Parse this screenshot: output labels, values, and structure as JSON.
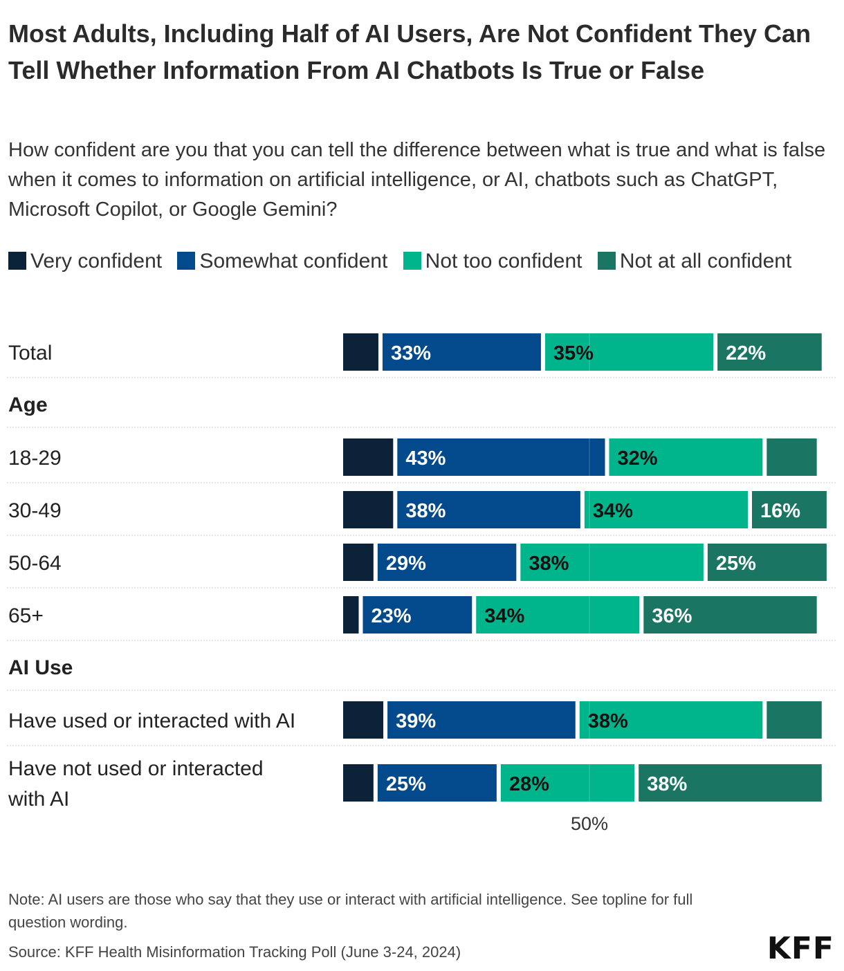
{
  "title": "Most Adults, Including Half of AI Users, Are Not Confident They Can Tell Whether Information From AI Chatbots Is True or False",
  "subtitle": "How confident are you that you can tell the difference between what is true and what is false when it comes to information on artificial intelligence, or AI, chatbots such as ChatGPT, Microsoft Copilot, or Google Gemini?",
  "note": "Note: AI users are those who say that they use or interact with artificial intelligence. See topline for full question wording.",
  "source": "Source: KFF Health Misinformation Tracking Poll (June 3-24, 2024)",
  "brand": "KFF",
  "colors": {
    "very_confident": "#0b2239",
    "somewhat_confident": "#034a8c",
    "not_too_confident": "#00b48c",
    "not_at_all_confident": "#1a7562"
  },
  "chart_data": {
    "type": "bar",
    "orientation": "horizontal",
    "stacked": true,
    "xlim": [
      0,
      100
    ],
    "x_tick_labels": [
      "50%"
    ],
    "x_ticks": [
      50
    ],
    "legend_position": "top-left",
    "series": [
      {
        "name": "Very confident",
        "key": "very_confident",
        "values": [
          8,
          11,
          11,
          7,
          4,
          9,
          7
        ]
      },
      {
        "name": "Somewhat confident",
        "key": "somewhat_confident",
        "values": [
          33,
          43,
          38,
          29,
          23,
          39,
          25
        ]
      },
      {
        "name": "Not too confident",
        "key": "not_too_confident",
        "values": [
          35,
          32,
          34,
          38,
          34,
          38,
          28
        ]
      },
      {
        "name": "Not at all confident",
        "key": "not_at_all_confident",
        "values": [
          22,
          11,
          16,
          25,
          36,
          12,
          38
        ]
      }
    ],
    "rows": [
      {
        "type": "category",
        "label": "Total",
        "index": 0
      },
      {
        "type": "group",
        "label": "Age"
      },
      {
        "type": "category",
        "label": "18-29",
        "index": 1
      },
      {
        "type": "category",
        "label": "30-49",
        "index": 2
      },
      {
        "type": "category",
        "label": "50-64",
        "index": 3
      },
      {
        "type": "category",
        "label": "65+",
        "index": 4
      },
      {
        "type": "group",
        "label": "AI Use"
      },
      {
        "type": "category",
        "label": "Have used or interacted with AI",
        "index": 5
      },
      {
        "type": "category",
        "label": "Have not used or interacted with AI",
        "index": 6
      }
    ],
    "data_labels": [
      [
        "",
        "33%",
        "35%",
        "22%"
      ],
      [
        "",
        "43%",
        "32%",
        ""
      ],
      [
        "",
        "38%",
        "34%",
        "16%"
      ],
      [
        "",
        "29%",
        "38%",
        "25%"
      ],
      [
        "",
        "23%",
        "34%",
        "36%"
      ],
      [
        "",
        "39%",
        "38%",
        ""
      ],
      [
        "",
        "25%",
        "28%",
        "38%"
      ]
    ]
  }
}
